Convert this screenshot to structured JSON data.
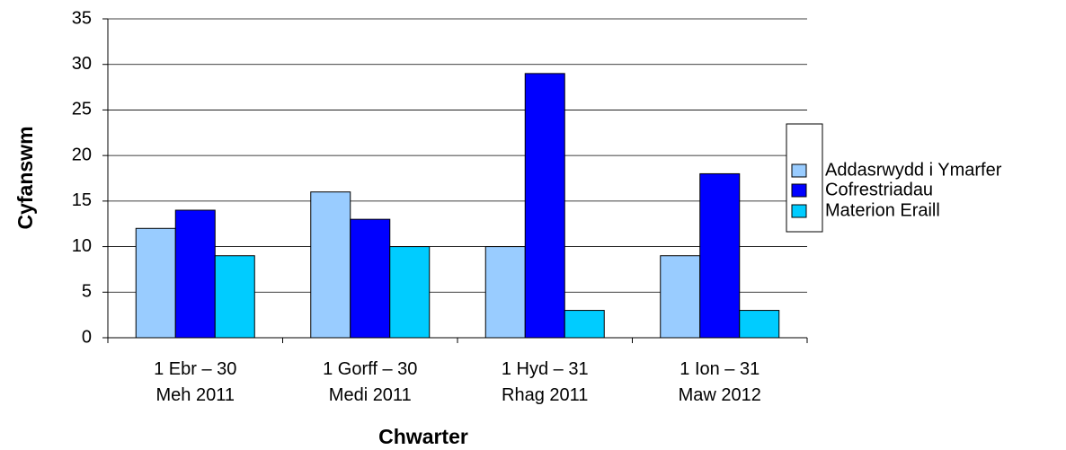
{
  "chart_data": {
    "type": "bar",
    "categories": [
      "1 Ebr – 30\nMeh 2011",
      "1 Gorff – 30\nMedi 2011",
      "1 Hyd – 31\nRhag 2011",
      "1 Ion – 31\nMaw 2012"
    ],
    "series": [
      {
        "name": "Addasrwydd i Ymarfer",
        "color": "#99ccff",
        "values": [
          12,
          16,
          10,
          9
        ]
      },
      {
        "name": "Cofrestriadau",
        "color": "#0000ff",
        "values": [
          14,
          13,
          29,
          18
        ]
      },
      {
        "name": "Materion Eraill",
        "color": "#00ccff",
        "values": [
          9,
          10,
          3,
          3
        ]
      }
    ],
    "xlabel": "Chwarter",
    "ylabel": "Cyfanswm",
    "ylim": [
      0,
      35
    ],
    "yticks": [
      0,
      5,
      10,
      15,
      20,
      25,
      30,
      35
    ],
    "grid": true,
    "legend": "right"
  }
}
